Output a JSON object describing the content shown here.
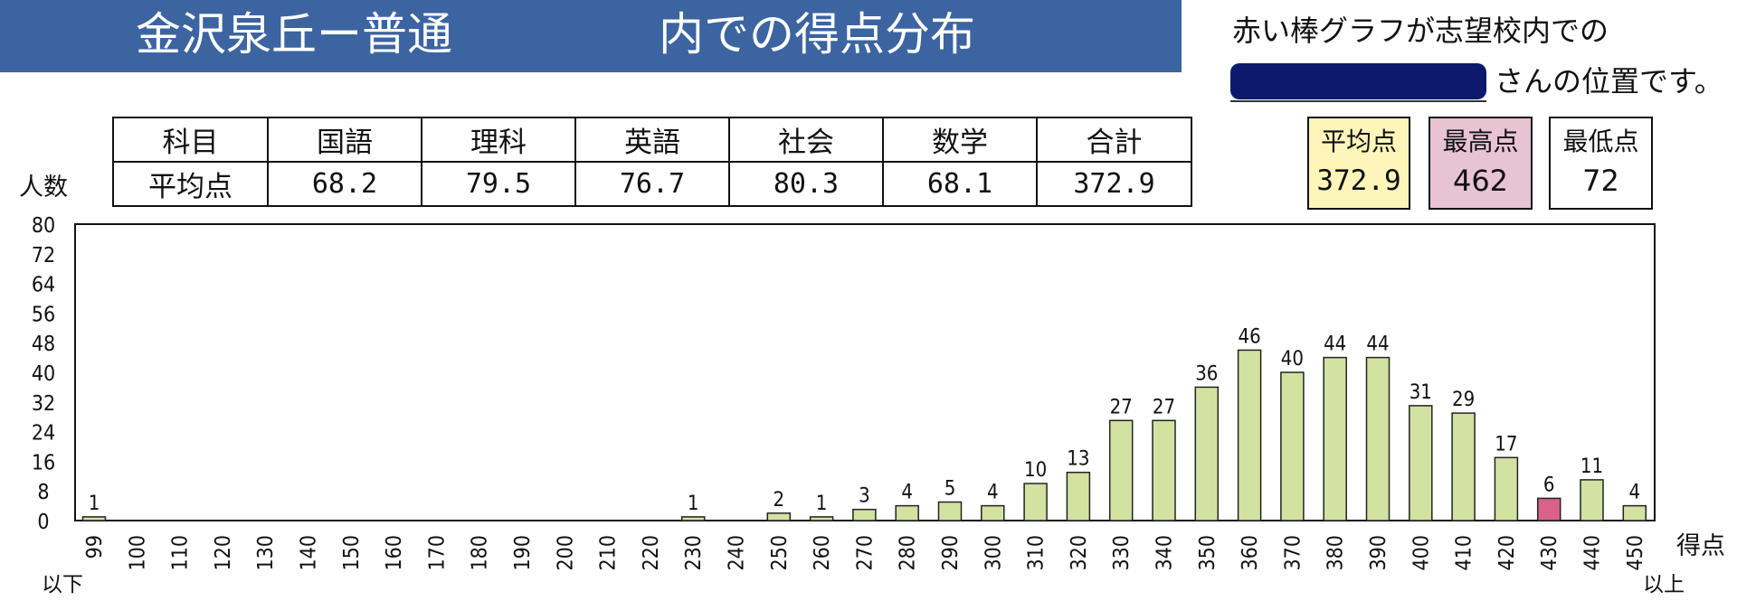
{
  "header": {
    "title_part1": "金沢泉丘ー普通",
    "title_part2": "内での得点分布"
  },
  "note": {
    "line1": "赤い棒グラフが志望校内での",
    "line2": "さんの位置です。"
  },
  "subject_table": {
    "header_label": "科目",
    "row_label": "平均点",
    "columns": [
      {
        "subject": "国語",
        "average": "68.2"
      },
      {
        "subject": "理科",
        "average": "79.5"
      },
      {
        "subject": "英語",
        "average": "76.7"
      },
      {
        "subject": "社会",
        "average": "80.3"
      },
      {
        "subject": "数学",
        "average": "68.1"
      },
      {
        "subject": "合計",
        "average": "372.9"
      }
    ]
  },
  "stats": {
    "average": {
      "label": "平均点",
      "value": "372.9"
    },
    "max": {
      "label": "最高点",
      "value": "462"
    },
    "min": {
      "label": "最低点",
      "value": "72"
    }
  },
  "colors": {
    "banner": "#3c64a0",
    "bar": "#d3e2a0",
    "highlight_bar": "#d9628a",
    "average_box": "#fdf5b9",
    "max_box": "#e8c3d2"
  },
  "chart_data": {
    "type": "bar",
    "ylabel": "人数",
    "xlabel": "得点",
    "ylim": [
      0,
      80
    ],
    "yticks": [
      "0",
      "8",
      "16",
      "24",
      "32",
      "40",
      "48",
      "56",
      "64",
      "72",
      "80"
    ],
    "categories": [
      "99",
      "100",
      "110",
      "120",
      "130",
      "140",
      "150",
      "160",
      "170",
      "180",
      "190",
      "200",
      "210",
      "220",
      "230",
      "240",
      "250",
      "260",
      "270",
      "280",
      "290",
      "300",
      "310",
      "320",
      "330",
      "340",
      "350",
      "360",
      "370",
      "380",
      "390",
      "400",
      "410",
      "420",
      "430",
      "440",
      "450"
    ],
    "values": [
      1,
      0,
      0,
      0,
      0,
      0,
      0,
      0,
      0,
      0,
      0,
      0,
      0,
      0,
      1,
      0,
      2,
      1,
      3,
      4,
      5,
      4,
      10,
      13,
      27,
      27,
      36,
      46,
      40,
      44,
      44,
      31,
      29,
      17,
      6,
      11,
      4
    ],
    "highlight_category": "430",
    "first_category_suffix": "以下",
    "last_category_suffix": "以上",
    "grid": false
  }
}
